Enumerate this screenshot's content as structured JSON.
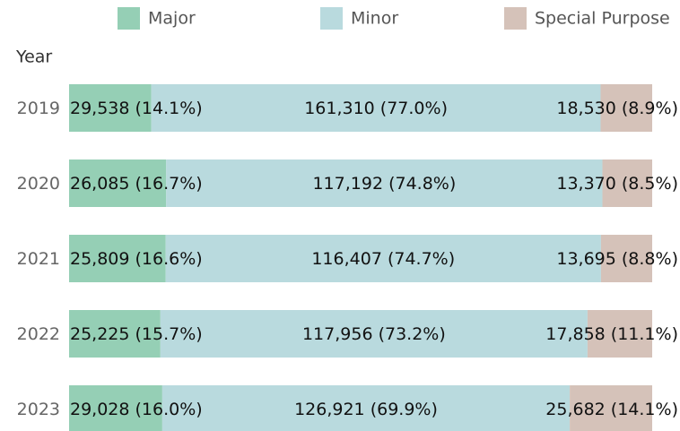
{
  "chart_data": {
    "type": "bar",
    "orientation": "horizontal",
    "stacked": "percent",
    "ylabel": "Year",
    "legend": "top",
    "categories": [
      "2019",
      "2020",
      "2021",
      "2022",
      "2023"
    ],
    "series": [
      {
        "name": "Major",
        "color": "#95cfb5",
        "values": [
          29538,
          26085,
          25809,
          25225,
          29028
        ],
        "value_labels": [
          "29,538 (14.1%)",
          "26,085 (16.7%)",
          "25,809 (16.6%)",
          "25,225 (15.7%)",
          "29,028 (16.0%)"
        ]
      },
      {
        "name": "Minor",
        "color": "#b9dade",
        "values": [
          161310,
          117192,
          116407,
          117956,
          126921
        ],
        "value_labels": [
          "161,310 (77.0%)",
          "117,192 (74.8%)",
          "116,407 (74.7%)",
          "117,956 (73.2%)",
          "126,921 (69.9%)"
        ]
      },
      {
        "name": "Special Purpose",
        "color": "#d5c2b9",
        "values": [
          18530,
          13370,
          13695,
          17858,
          25682
        ],
        "value_labels": [
          "18,530 (8.9%)",
          "13,370 (8.5%)",
          "13,695 (8.8%)",
          "17,858 (11.1%)",
          "25,682 (14.1%)"
        ]
      }
    ]
  }
}
